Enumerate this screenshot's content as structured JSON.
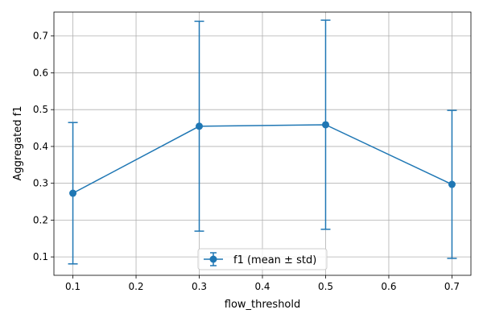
{
  "chart_data": {
    "type": "line",
    "xlabel": "flow_threshold",
    "ylabel": "Aggregated f1",
    "xlim": [
      0.07,
      0.73
    ],
    "ylim": [
      0.05,
      0.765
    ],
    "x_ticks": [
      "0.1",
      "0.2",
      "0.3",
      "0.4",
      "0.5",
      "0.6",
      "0.7"
    ],
    "y_ticks": [
      "0.1",
      "0.2",
      "0.3",
      "0.4",
      "0.5",
      "0.6",
      "0.7"
    ],
    "grid": true,
    "legend_position": "lower center",
    "series": [
      {
        "name": "f1 (mean ± std)",
        "color": "#1f77b4",
        "x": [
          0.1,
          0.3,
          0.5,
          0.7
        ],
        "y": [
          0.273,
          0.455,
          0.459,
          0.297
        ],
        "error": [
          0.192,
          0.285,
          0.284,
          0.201
        ]
      }
    ]
  }
}
